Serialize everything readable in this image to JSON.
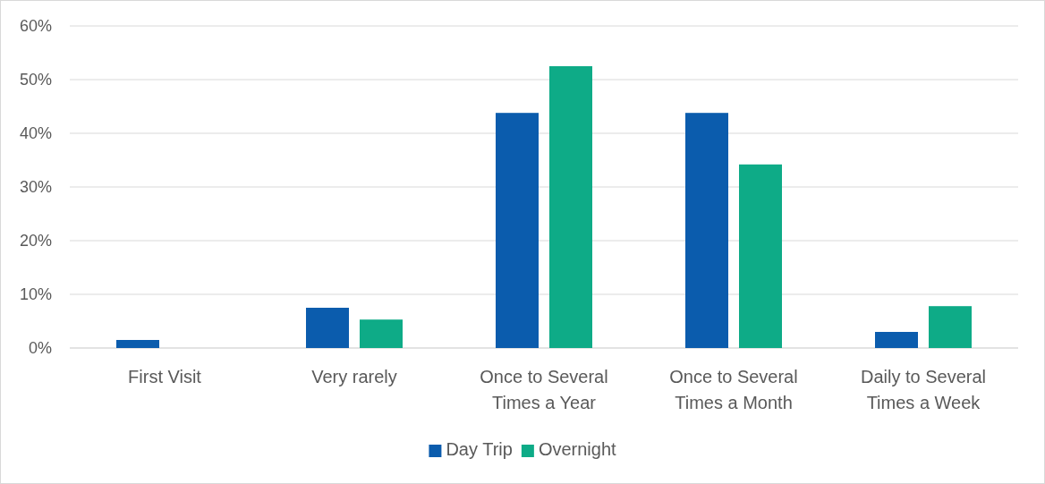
{
  "chart_data": {
    "type": "bar",
    "categories": [
      "First Visit",
      "Very rarely",
      "Once to Several Times a Year",
      "Once to Several Times a Month",
      "Daily to Several Times a Week"
    ],
    "series": [
      {
        "name": "Day Trip",
        "color": "#0b5cad",
        "values": [
          1.5,
          7.5,
          43.8,
          43.8,
          3.0
        ]
      },
      {
        "name": "Overnight",
        "color": "#0eab87",
        "values": [
          0,
          5.3,
          52.5,
          34.2,
          7.8
        ]
      }
    ],
    "ylim": [
      0,
      60
    ],
    "yticks": [
      {
        "value": 0,
        "label": "0%"
      },
      {
        "value": 10,
        "label": "10%"
      },
      {
        "value": 20,
        "label": "20%"
      },
      {
        "value": 30,
        "label": "30%"
      },
      {
        "value": 40,
        "label": "40%"
      },
      {
        "value": 50,
        "label": "50%"
      },
      {
        "value": 60,
        "label": "60%"
      }
    ],
    "grid": "y",
    "legend": "bottom"
  }
}
